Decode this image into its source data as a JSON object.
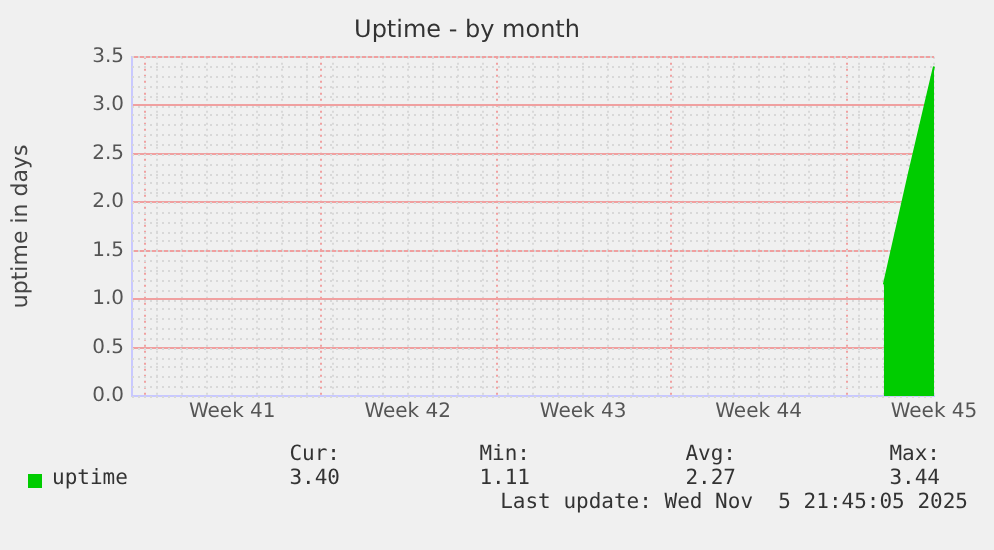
{
  "chart_data": {
    "type": "area",
    "title": "Uptime - by month",
    "ylabel": "uptime in days",
    "categories": [
      null,
      null,
      null,
      null,
      "Week 41",
      null,
      null,
      null,
      null,
      null,
      null,
      "Week 42",
      null,
      null,
      null,
      null,
      null,
      null,
      "Week 43",
      null,
      null,
      null,
      null,
      null,
      null,
      "Week 44",
      null,
      null,
      null,
      null,
      null,
      null,
      "Week 45"
    ],
    "ylim": [
      0,
      3.5
    ],
    "yticks": [
      {
        "value": 0,
        "label": "0.0"
      },
      {
        "value": 0.5,
        "label": "0.5"
      },
      {
        "value": 1,
        "label": "1.0"
      },
      {
        "value": 1.5,
        "label": "1.5"
      },
      {
        "value": 2,
        "label": "2.0"
      },
      {
        "value": 2.5,
        "label": "2.5"
      },
      {
        "value": 3,
        "label": "3.0"
      },
      {
        "value": 3.5,
        "label": "3.5"
      }
    ],
    "series": [
      {
        "name": "uptime",
        "color": "#00cc00",
        "values": [
          null,
          null,
          null,
          null,
          null,
          null,
          null,
          null,
          null,
          null,
          null,
          null,
          null,
          null,
          null,
          null,
          null,
          null,
          null,
          null,
          null,
          null,
          null,
          null,
          null,
          null,
          null,
          null,
          null,
          null,
          1.15,
          2.3,
          3.4
        ]
      }
    ],
    "grid": true,
    "legend": "bottom left",
    "annotations": [
      "Cur:",
      "Min:",
      "Avg:",
      "Max:",
      "3.40",
      "1.11",
      "2.27",
      "3.44",
      "Last update: Wed Nov  5 21:45:05 2025"
    ]
  }
}
